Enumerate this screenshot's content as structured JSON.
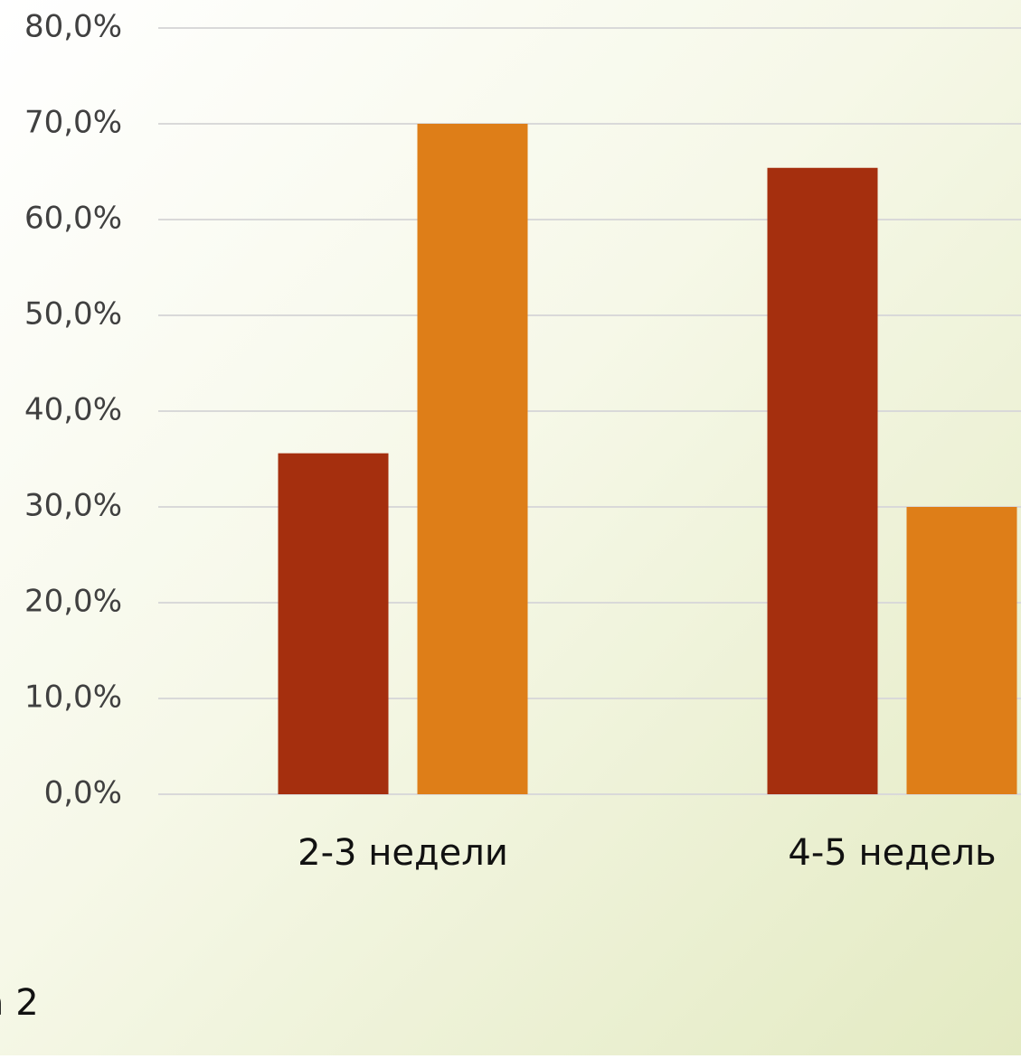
{
  "chart_data": {
    "type": "bar",
    "categories": [
      "2-3 недели",
      "4-5 недель"
    ],
    "series": [
      {
        "color": "#a52f0e",
        "values": [
          35.6,
          65.4
        ]
      },
      {
        "color": "#de7e18",
        "values": [
          70.0,
          30.0
        ]
      }
    ],
    "ylim": [
      0,
      80
    ],
    "yticks": [
      {
        "value": 0,
        "label": "0,0%"
      },
      {
        "value": 10,
        "label": "10,0%"
      },
      {
        "value": 20,
        "label": "20,0%"
      },
      {
        "value": 30,
        "label": "30,0%"
      },
      {
        "value": 40,
        "label": "40,0%"
      },
      {
        "value": 50,
        "label": "50,0%"
      },
      {
        "value": 60,
        "label": "60,0%"
      },
      {
        "value": 70,
        "label": "70,0%"
      },
      {
        "value": 80,
        "label": "80,0%"
      }
    ],
    "grid": true,
    "annotation": "а 2"
  }
}
